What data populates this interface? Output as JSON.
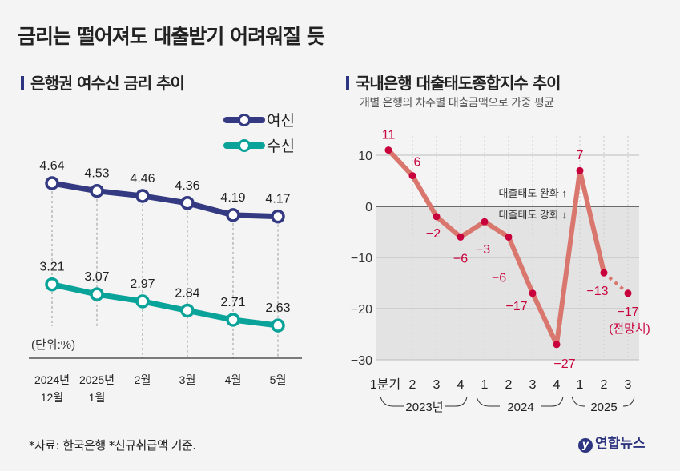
{
  "title": "금리는 떨어져도 대출받기 어려워질 듯",
  "source": "*자료: 한국은행 *신규취급액 기준.",
  "logo_text": "연합뉴스",
  "chart_data": [
    {
      "type": "line",
      "title": "은행권 여수신 금리 추이",
      "unit_label": "(단위:%)",
      "categories": [
        [
          "2024년",
          "12월"
        ],
        [
          "2025년",
          "1월"
        ],
        [
          "2월"
        ],
        [
          "3월"
        ],
        [
          "4월"
        ],
        [
          "5월"
        ]
      ],
      "series": [
        {
          "name": "여신",
          "color": "#343a82",
          "values": [
            4.64,
            4.53,
            4.46,
            4.36,
            4.19,
            4.17
          ],
          "labels": [
            "4.64",
            "4.53",
            "4.46",
            "4.36",
            "4.19",
            "4.17"
          ]
        },
        {
          "name": "수신",
          "color": "#0aa399",
          "values": [
            3.21,
            3.07,
            2.97,
            2.84,
            2.71,
            2.63
          ],
          "labels": [
            "3.21",
            "3.07",
            "2.97",
            "2.84",
            "2.71",
            "2.63"
          ]
        }
      ],
      "legend": "top-right"
    },
    {
      "type": "line",
      "title": "국내은행 대출태도종합지수 추이",
      "subtitle": "개별 은행의 차주별 대출금액으로 가중 평균",
      "x": [
        "1분기",
        "2",
        "3",
        "4",
        "1",
        "2",
        "3",
        "4",
        "1",
        "2",
        "3"
      ],
      "groups": [
        {
          "label": "2023년"
        },
        {
          "label": "2024"
        },
        {
          "label": "2025"
        }
      ],
      "values": [
        11,
        6,
        -2,
        -6,
        -3,
        -6,
        -17,
        -27,
        7,
        -13,
        -17
      ],
      "labels": [
        "11",
        "6",
        "−2",
        "−6",
        "−3",
        "−6",
        "−17",
        "−27",
        "7",
        "−13",
        "−17"
      ],
      "forecast_label": "(전망치)",
      "yticks": [
        10,
        0,
        -10,
        -20,
        -30
      ],
      "ytick_labels": [
        "10",
        "0",
        "−10",
        "−20",
        "−30"
      ],
      "ylim": [
        -30,
        12
      ],
      "annotations": {
        "ease": "대출태도 완화 ↑",
        "tighten": "대출태도 강화 ↓"
      },
      "line_color": "#d9776f",
      "point_color": "#c8003c",
      "grid": true
    }
  ]
}
